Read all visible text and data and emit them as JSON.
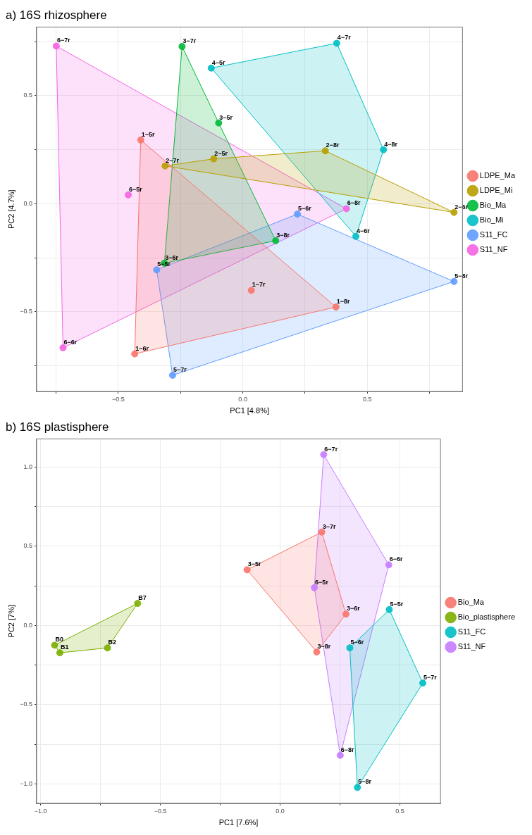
{
  "chart_data": [
    {
      "type": "scatter",
      "title": "a) 16S rhizosphere",
      "xlabel": "PC1 [4.8%]",
      "ylabel": "PC2 [4.7%]",
      "legend": "right",
      "grid": true,
      "marker": "circle",
      "xlim": [
        -0.828,
        0.882
      ],
      "ylim": [
        -0.869,
        0.818
      ],
      "xticks": [
        {
          "value": -0.75,
          "label": null
        },
        {
          "value": -0.5,
          "label": "−0.5"
        },
        {
          "value": -0.25,
          "label": null
        },
        {
          "value": 0,
          "label": "0.0"
        },
        {
          "value": 0.25,
          "label": null
        },
        0.5,
        {
          "value": 0.75,
          "label": null
        }
      ],
      "yticks": [
        {
          "value": -0.75,
          "label": null
        },
        {
          "value": -0.5,
          "label": "−0.5"
        },
        {
          "value": -0.25,
          "label": null
        },
        {
          "value": 0,
          "label": "0.0"
        },
        {
          "value": 0.25,
          "label": null
        },
        0.5,
        {
          "value": 0.75,
          "label": null
        }
      ],
      "series": [
        {
          "type": "area",
          "marker": "none",
          "color": "#f8766d",
          "x": [
            -0.41,
            0.374,
            -0.434,
            -0.41
          ],
          "values": [
            0.295,
            -0.478,
            -0.695,
            0.295
          ]
        },
        {
          "type": "area",
          "marker": "none",
          "color": "#b79f00",
          "x": [
            -0.312,
            -0.117,
            0.331,
            0.848,
            -0.312
          ],
          "values": [
            0.175,
            0.208,
            0.245,
            -0.04,
            0.175
          ]
        },
        {
          "type": "area",
          "marker": "none",
          "color": "#00ba38",
          "x": [
            -0.244,
            -0.097,
            0.132,
            -0.315,
            -0.244
          ],
          "values": [
            0.728,
            0.374,
            -0.171,
            -0.275,
            0.728
          ]
        },
        {
          "type": "area",
          "marker": "none",
          "color": "#00bfc4",
          "x": [
            -0.127,
            0.377,
            0.565,
            0.454,
            -0.127
          ],
          "values": [
            0.628,
            0.743,
            0.25,
            -0.151,
            0.628
          ]
        },
        {
          "type": "area",
          "marker": "none",
          "color": "#619cff",
          "x": [
            0.219,
            0.848,
            -0.282,
            -0.346,
            0.219
          ],
          "values": [
            -0.048,
            -0.36,
            -0.794,
            -0.306,
            -0.048
          ]
        },
        {
          "type": "area",
          "marker": "none",
          "color": "#f564e3",
          "x": [
            -0.749,
            0.416,
            -0.722,
            -0.749
          ],
          "values": [
            0.73,
            -0.023,
            -0.667,
            0.73
          ]
        },
        {
          "name": "LDPE_Ma",
          "color": "#f8766d",
          "x": [
            -0.41,
            0.034,
            0.374,
            -0.434
          ],
          "values": [
            0.295,
            -0.401,
            -0.478,
            -0.695
          ],
          "value_labels": [
            "1−5r",
            "1−7r",
            "1−8r",
            "1−6r"
          ]
        },
        {
          "name": "LDPE_Mi",
          "color": "#b79f00",
          "x": [
            -0.312,
            -0.117,
            0.331,
            0.848
          ],
          "values": [
            0.175,
            0.208,
            0.245,
            -0.04
          ],
          "value_labels": [
            "2−7r",
            "2−5r",
            "2−8r",
            "2−6r"
          ]
        },
        {
          "name": "Bio_Ma",
          "color": "#00ba38",
          "x": [
            -0.244,
            -0.097,
            0.132,
            -0.315
          ],
          "values": [
            0.728,
            0.374,
            -0.171,
            -0.275
          ],
          "value_labels": [
            "3−7r",
            "3−5r",
            "3−8r",
            "3−6r"
          ]
        },
        {
          "name": "Bio_Mi",
          "color": "#00bfc4",
          "x": [
            0.377,
            -0.127,
            0.565,
            0.454
          ],
          "values": [
            0.743,
            0.628,
            0.25,
            -0.151
          ],
          "value_labels": [
            "4−7r",
            "4−5r",
            "4−8r",
            "4−6r"
          ]
        },
        {
          "name": "S11_FC",
          "color": "#619cff",
          "x": [
            0.219,
            -0.346,
            -0.282,
            0.848
          ],
          "values": [
            -0.048,
            -0.306,
            -0.794,
            -0.36
          ],
          "value_labels": [
            "5−6r",
            "5−5r",
            "5−7r",
            "5−8r"
          ]
        },
        {
          "name": "S11_NF",
          "color": "#f564e3",
          "x": [
            -0.749,
            -0.46,
            0.416,
            -0.722
          ],
          "values": [
            0.73,
            0.041,
            -0.023,
            -0.667
          ],
          "value_labels": [
            "6−7r",
            "6−5r",
            "6−8r",
            "6−6r"
          ]
        }
      ]
    },
    {
      "type": "scatter",
      "title": "b) 16S plastisphere",
      "xlabel": "PC1 [7.6%]",
      "ylabel": "PC2 [7%]",
      "legend": "right",
      "grid": true,
      "marker": "circle",
      "xlim": [
        -1.017,
        0.67
      ],
      "ylim": [
        -1.123,
        1.177
      ],
      "xticks": [
        {
          "value": -1,
          "label": "−1.0"
        },
        {
          "value": -0.75,
          "label": null
        },
        {
          "value": -0.5,
          "label": "−0.5"
        },
        {
          "value": -0.25,
          "label": null
        },
        {
          "value": 0,
          "label": "0.0"
        },
        {
          "value": 0.25,
          "label": null
        },
        0.5
      ],
      "yticks": [
        {
          "value": -1,
          "label": "−1.0"
        },
        {
          "value": -0.75,
          "label": null
        },
        {
          "value": -0.5,
          "label": "−0.5"
        },
        {
          "value": -0.25,
          "label": null
        },
        {
          "value": 0,
          "label": "0.0"
        },
        {
          "value": 0.25,
          "label": null
        },
        0.5,
        {
          "value": 0.75,
          "label": null
        },
        {
          "value": 1,
          "label": "1.0"
        }
      ],
      "series": [
        {
          "type": "area",
          "marker": "none",
          "color": "#f8766d",
          "x": [
            0.174,
            0.275,
            0.153,
            -0.138,
            0.174
          ],
          "values": [
            0.589,
            0.071,
            -0.168,
            0.351,
            0.589
          ]
        },
        {
          "type": "area",
          "marker": "none",
          "color": "#7cae00",
          "x": [
            -0.942,
            -0.595,
            -0.721,
            -0.92,
            -0.942
          ],
          "values": [
            -0.125,
            0.139,
            -0.142,
            -0.173,
            -0.125
          ]
        },
        {
          "type": "area",
          "marker": "none",
          "color": "#00bfc4",
          "x": [
            0.456,
            0.596,
            0.323,
            0.291,
            0.456
          ],
          "values": [
            0.1,
            -0.364,
            -1.023,
            -0.142,
            0.1
          ]
        },
        {
          "type": "area",
          "marker": "none",
          "color": "#c77cff",
          "x": [
            0.182,
            0.454,
            0.251,
            0.143,
            0.182
          ],
          "values": [
            1.078,
            0.382,
            -0.82,
            0.238,
            1.078
          ]
        },
        {
          "name": "Bio_Ma",
          "color": "#f8766d",
          "x": [
            0.174,
            -0.138,
            0.275,
            0.153
          ],
          "values": [
            0.589,
            0.351,
            0.071,
            -0.168
          ],
          "value_labels": [
            "3−7r",
            "3−5r",
            "3−6r",
            "3−8r"
          ]
        },
        {
          "name": "Bio_plastisphere",
          "color": "#7cae00",
          "x": [
            -0.942,
            -0.92,
            -0.721,
            -0.595
          ],
          "values": [
            -0.125,
            -0.173,
            -0.142,
            0.139
          ],
          "value_labels": [
            "B0",
            "B1",
            "B2",
            "B7"
          ]
        },
        {
          "name": "S11_FC",
          "color": "#00bfc4",
          "x": [
            0.456,
            0.291,
            0.596,
            0.323
          ],
          "values": [
            0.1,
            -0.142,
            -0.364,
            -1.023
          ],
          "value_labels": [
            "5−5r",
            "5−6r",
            "5−7r",
            "5−8r"
          ]
        },
        {
          "name": "S11_NF",
          "color": "#c77cff",
          "x": [
            0.182,
            0.454,
            0.143,
            0.251
          ],
          "values": [
            1.078,
            0.382,
            0.238,
            -0.82
          ],
          "value_labels": [
            "6−7r",
            "6−6r",
            "6−5r",
            "6−8r"
          ]
        }
      ]
    }
  ]
}
